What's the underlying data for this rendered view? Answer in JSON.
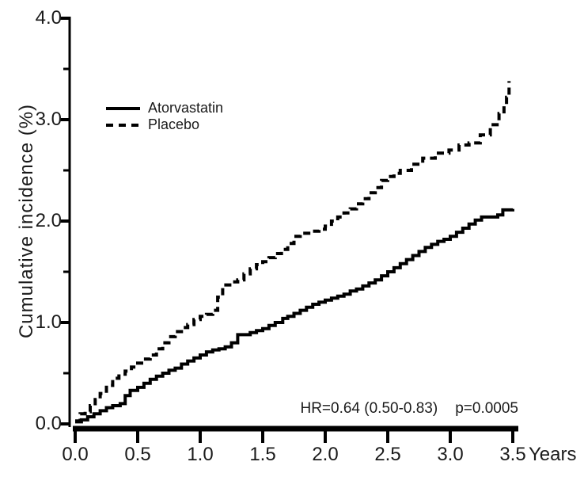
{
  "chart_data": {
    "type": "line",
    "title": "",
    "xlabel": "Years",
    "ylabel": "Cumulative incidence (%)",
    "xlim": [
      0,
      3.5
    ],
    "ylim": [
      0,
      4.0
    ],
    "x_ticks": [
      "0.0",
      "0.5",
      "1.0",
      "1.5",
      "2.0",
      "2.5",
      "3.0",
      "3.5"
    ],
    "y_ticks": [
      "0.0",
      "1.0",
      "2.0",
      "3.0",
      "4.0"
    ],
    "y_minor_ticks": [
      0.5,
      1.5,
      2.5,
      3.5
    ],
    "grid": false,
    "legend_position": "upper-left-inside",
    "annotations": {
      "hr_text": "HR=0.64 (0.50-0.83)",
      "p_text": "p=0.0005"
    },
    "axis_color": "#000000",
    "series": [
      {
        "name": "Atorvastatin",
        "line": "solid",
        "color": "#000000",
        "points": [
          [
            0.0,
            0.02
          ],
          [
            0.05,
            0.04
          ],
          [
            0.1,
            0.07
          ],
          [
            0.15,
            0.1
          ],
          [
            0.2,
            0.13
          ],
          [
            0.25,
            0.16
          ],
          [
            0.3,
            0.18
          ],
          [
            0.36,
            0.2
          ],
          [
            0.4,
            0.28
          ],
          [
            0.44,
            0.33
          ],
          [
            0.5,
            0.36
          ],
          [
            0.55,
            0.4
          ],
          [
            0.6,
            0.44
          ],
          [
            0.65,
            0.47
          ],
          [
            0.7,
            0.5
          ],
          [
            0.75,
            0.53
          ],
          [
            0.8,
            0.55
          ],
          [
            0.85,
            0.59
          ],
          [
            0.9,
            0.62
          ],
          [
            0.95,
            0.65
          ],
          [
            1.0,
            0.68
          ],
          [
            1.05,
            0.71
          ],
          [
            1.1,
            0.73
          ],
          [
            1.15,
            0.74
          ],
          [
            1.2,
            0.76
          ],
          [
            1.25,
            0.8
          ],
          [
            1.3,
            0.88
          ],
          [
            1.4,
            0.9
          ],
          [
            1.45,
            0.92
          ],
          [
            1.5,
            0.94
          ],
          [
            1.55,
            0.97
          ],
          [
            1.6,
            1.0
          ],
          [
            1.66,
            1.04
          ],
          [
            1.7,
            1.06
          ],
          [
            1.75,
            1.09
          ],
          [
            1.8,
            1.12
          ],
          [
            1.85,
            1.15
          ],
          [
            1.9,
            1.18
          ],
          [
            1.95,
            1.2
          ],
          [
            2.0,
            1.22
          ],
          [
            2.05,
            1.24
          ],
          [
            2.1,
            1.26
          ],
          [
            2.15,
            1.28
          ],
          [
            2.2,
            1.31
          ],
          [
            2.25,
            1.33
          ],
          [
            2.3,
            1.36
          ],
          [
            2.35,
            1.39
          ],
          [
            2.4,
            1.42
          ],
          [
            2.45,
            1.46
          ],
          [
            2.5,
            1.5
          ],
          [
            2.55,
            1.54
          ],
          [
            2.6,
            1.58
          ],
          [
            2.65,
            1.62
          ],
          [
            2.7,
            1.66
          ],
          [
            2.75,
            1.7
          ],
          [
            2.8,
            1.74
          ],
          [
            2.85,
            1.77
          ],
          [
            2.9,
            1.8
          ],
          [
            2.95,
            1.82
          ],
          [
            3.0,
            1.85
          ],
          [
            3.05,
            1.89
          ],
          [
            3.1,
            1.93
          ],
          [
            3.15,
            1.97
          ],
          [
            3.2,
            2.01
          ],
          [
            3.25,
            2.04
          ],
          [
            3.38,
            2.06
          ],
          [
            3.42,
            2.11
          ],
          [
            3.5,
            2.12
          ]
        ]
      },
      {
        "name": "Placebo",
        "line": "dashed",
        "color": "#000000",
        "points": [
          [
            0.0,
            0.03
          ],
          [
            0.04,
            0.1
          ],
          [
            0.08,
            0.12
          ],
          [
            0.12,
            0.18
          ],
          [
            0.16,
            0.24
          ],
          [
            0.2,
            0.3
          ],
          [
            0.25,
            0.38
          ],
          [
            0.3,
            0.45
          ],
          [
            0.35,
            0.49
          ],
          [
            0.4,
            0.52
          ],
          [
            0.45,
            0.56
          ],
          [
            0.5,
            0.6
          ],
          [
            0.55,
            0.64
          ],
          [
            0.6,
            0.68
          ],
          [
            0.65,
            0.74
          ],
          [
            0.7,
            0.8
          ],
          [
            0.75,
            0.86
          ],
          [
            0.8,
            0.91
          ],
          [
            0.85,
            0.95
          ],
          [
            0.9,
            0.98
          ],
          [
            0.95,
            1.03
          ],
          [
            1.0,
            1.06
          ],
          [
            1.05,
            1.08
          ],
          [
            1.1,
            1.12
          ],
          [
            1.14,
            1.25
          ],
          [
            1.18,
            1.37
          ],
          [
            1.25,
            1.4
          ],
          [
            1.3,
            1.42
          ],
          [
            1.35,
            1.48
          ],
          [
            1.4,
            1.53
          ],
          [
            1.45,
            1.57
          ],
          [
            1.5,
            1.6
          ],
          [
            1.55,
            1.64
          ],
          [
            1.6,
            1.68
          ],
          [
            1.65,
            1.72
          ],
          [
            1.7,
            1.78
          ],
          [
            1.75,
            1.85
          ],
          [
            1.8,
            1.88
          ],
          [
            1.9,
            1.9
          ],
          [
            1.95,
            1.92
          ],
          [
            2.0,
            1.95
          ],
          [
            2.05,
            2.0
          ],
          [
            2.1,
            2.04
          ],
          [
            2.15,
            2.08
          ],
          [
            2.2,
            2.12
          ],
          [
            2.25,
            2.17
          ],
          [
            2.3,
            2.22
          ],
          [
            2.35,
            2.28
          ],
          [
            2.4,
            2.33
          ],
          [
            2.45,
            2.4
          ],
          [
            2.5,
            2.44
          ],
          [
            2.55,
            2.47
          ],
          [
            2.6,
            2.5
          ],
          [
            2.69,
            2.56
          ],
          [
            2.78,
            2.62
          ],
          [
            2.88,
            2.67
          ],
          [
            2.99,
            2.7
          ],
          [
            3.07,
            2.75
          ],
          [
            3.15,
            2.77
          ],
          [
            3.24,
            2.85
          ],
          [
            3.32,
            2.95
          ],
          [
            3.39,
            3.06
          ],
          [
            3.43,
            3.15
          ],
          [
            3.45,
            3.22
          ],
          [
            3.47,
            3.38
          ]
        ]
      }
    ]
  }
}
